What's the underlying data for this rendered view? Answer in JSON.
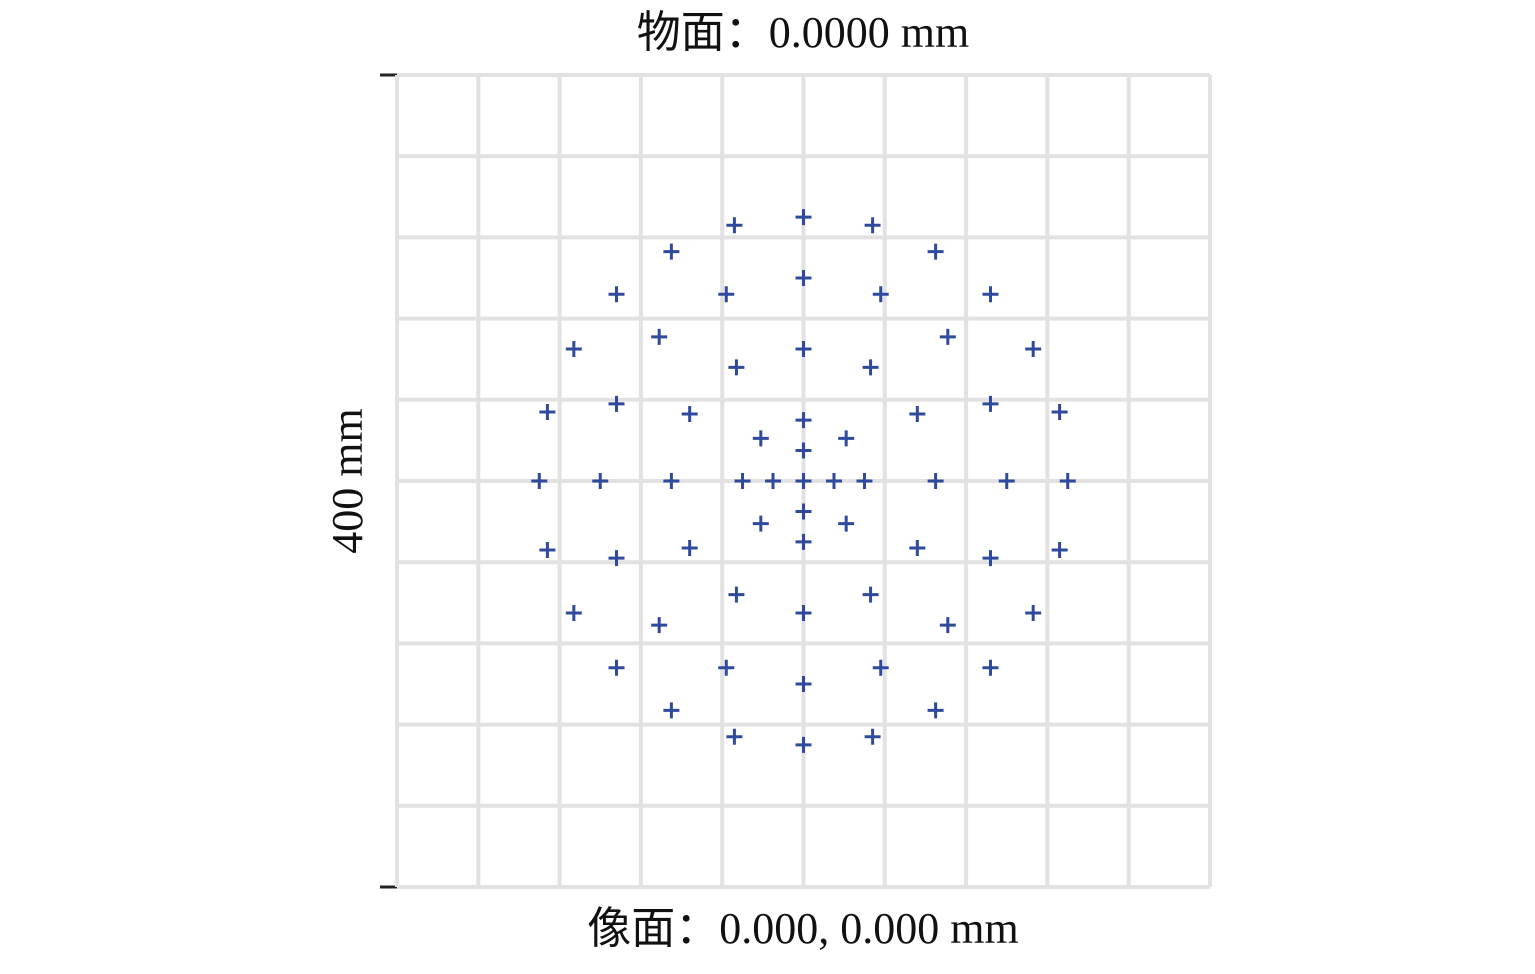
{
  "chart_data": {
    "type": "scatter",
    "title": "物面：0.0000 mm",
    "xlabel": "像面：0.000, 0.000 mm",
    "scale_label": "400 mm",
    "color": "#2f4a9c",
    "xlim": [
      -200,
      200
    ],
    "ylim": [
      -200,
      200
    ],
    "grid": true,
    "x": [
      130,
      126,
      113,
      92,
      65,
      34,
      0,
      -34,
      -65,
      -92,
      -113,
      -126,
      -130,
      -126,
      -113,
      -92,
      -65,
      -34,
      0,
      34,
      65,
      92,
      113,
      126,
      100,
      92,
      71,
      38,
      0,
      -38,
      -71,
      -92,
      -100,
      -92,
      -71,
      -38,
      0,
      38,
      71,
      92,
      65,
      56,
      33,
      0,
      -33,
      -56,
      -65,
      -56,
      -33,
      0,
      33,
      56,
      30,
      21,
      0,
      -21,
      -30,
      -21,
      0,
      21,
      0,
      15,
      -15,
      0,
      0
    ],
    "y": [
      0,
      34,
      65,
      92,
      113,
      126,
      130,
      126,
      113,
      92,
      65,
      34,
      0,
      -34,
      -65,
      -92,
      -113,
      -126,
      -130,
      -126,
      -113,
      -92,
      -65,
      -34,
      0,
      38,
      71,
      92,
      100,
      92,
      71,
      38,
      0,
      -38,
      -71,
      -92,
      -100,
      -92,
      -71,
      -38,
      0,
      33,
      56,
      65,
      56,
      33,
      0,
      -33,
      -56,
      -65,
      -56,
      -33,
      0,
      21,
      30,
      21,
      0,
      -21,
      -30,
      -21,
      0,
      0,
      0,
      15,
      -15
    ]
  }
}
